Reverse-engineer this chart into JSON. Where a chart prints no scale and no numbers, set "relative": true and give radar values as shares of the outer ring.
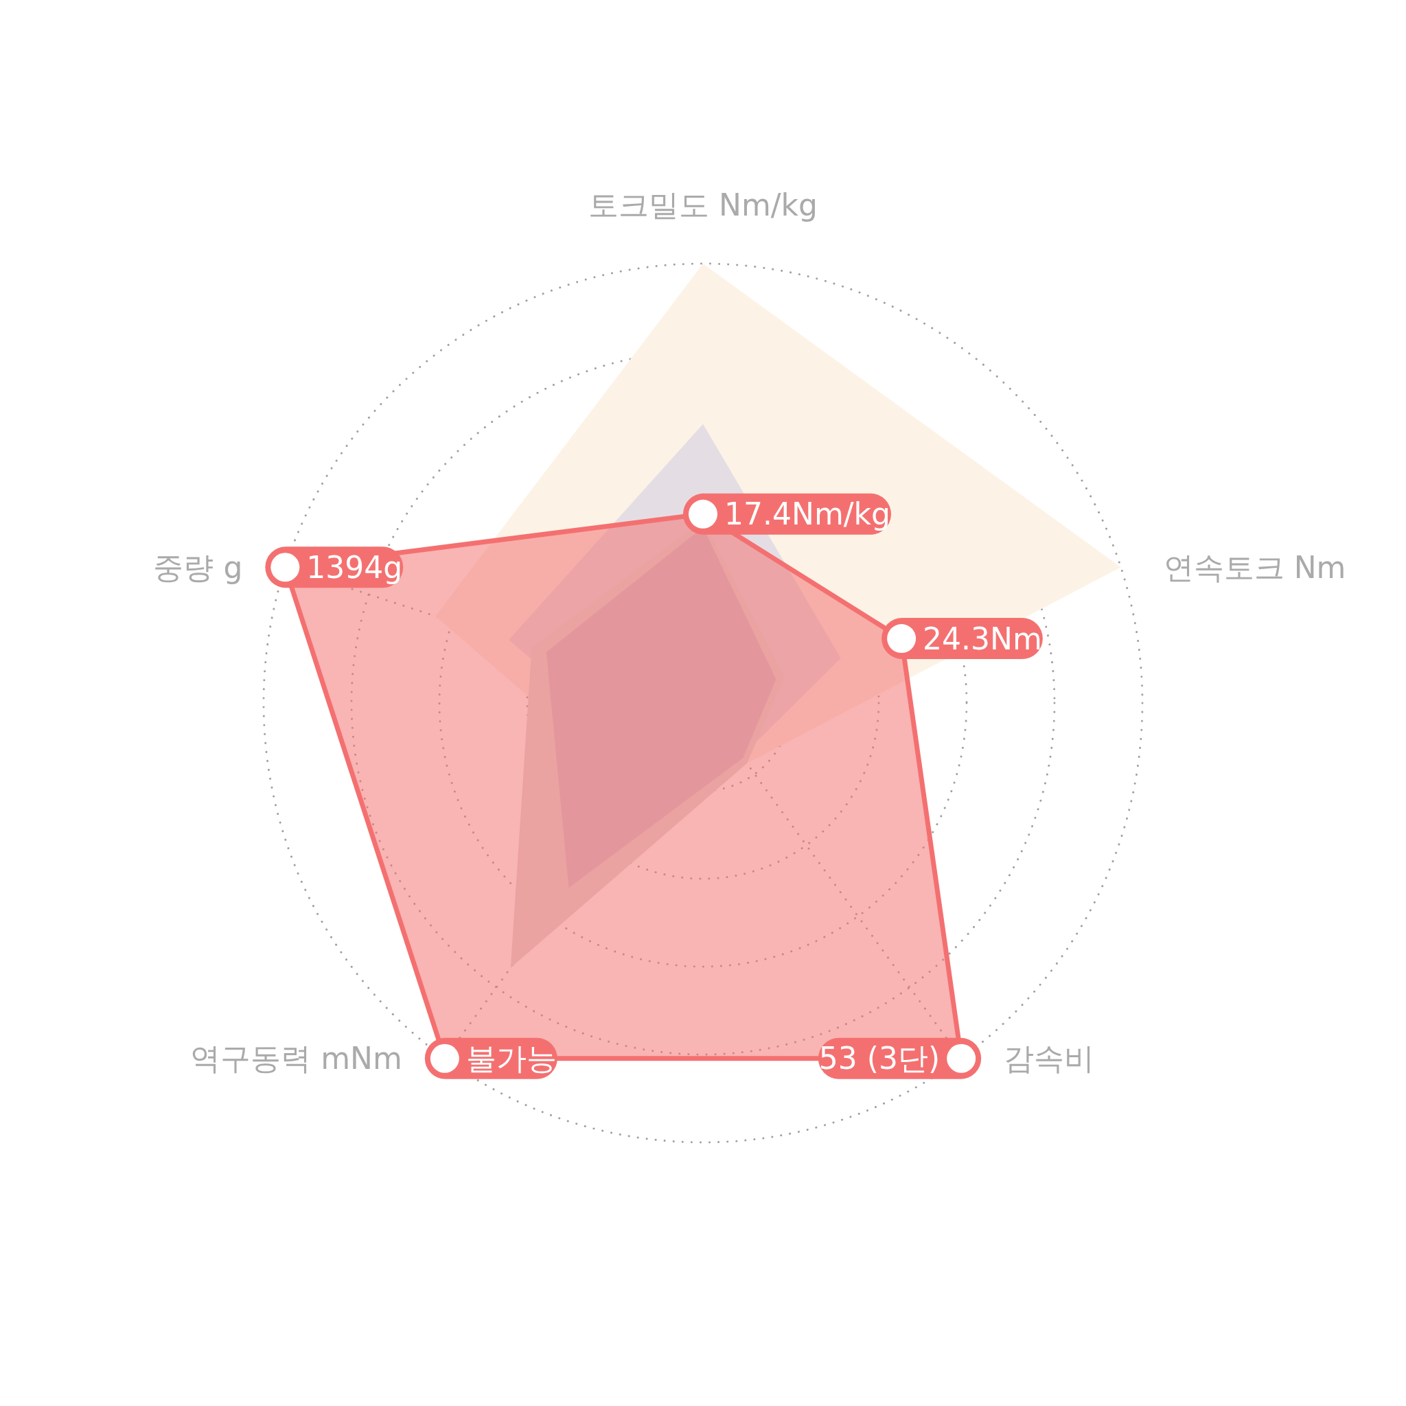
{
  "chart_data": {
    "type": "radar",
    "relative": true,
    "grid": true,
    "categories": [
      "토크밀도 Nm/kg",
      "연속토크 Nm",
      "감속비",
      "역구동력 mNm",
      "중량 g"
    ],
    "series": [
      {
        "color": "#fcf3e6",
        "values": [
          1,
          1,
          0.17,
          0.25,
          0.64
        ]
      },
      {
        "color": "#e4dee4",
        "values": [
          0.635,
          0.33,
          0.15,
          0.18,
          0.465
        ]
      },
      {
        "color": "#e0dcd8",
        "values": [
          0.415,
          0.195,
          0.17,
          0.745,
          0.41
        ]
      },
      {
        "color": "#d2c2cc",
        "values": [
          0.4,
          0.175,
          0.155,
          0.52,
          0.375
        ]
      },
      {
        "color": "#f47070",
        "values": [
          0.43,
          0.475,
          1,
          1,
          1
        ],
        "marker": "circle"
      }
    ],
    "annotations": [
      {
        "text": "17.4Nm/kg",
        "x": "토크밀도 Nm/kg"
      },
      {
        "text": "24.3Nm",
        "x": "연속토크 Nm"
      },
      {
        "text": "53 (3단)",
        "x": "감속비"
      },
      {
        "text": "불가능",
        "x": "역구동력 mNm"
      },
      {
        "text": "1394g",
        "x": "중량 g"
      }
    ]
  }
}
